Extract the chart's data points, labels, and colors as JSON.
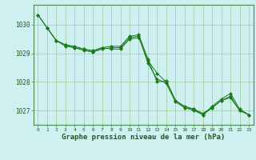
{
  "line1": {
    "x": [
      0,
      1,
      2,
      3,
      4,
      5,
      6,
      7,
      8,
      9,
      10,
      11,
      12,
      13,
      14,
      15,
      16,
      17,
      18,
      19,
      20,
      21,
      22,
      23
    ],
    "y": [
      1030.35,
      1029.9,
      1029.45,
      1029.3,
      1029.25,
      1029.15,
      1029.1,
      1029.2,
      1029.15,
      1029.15,
      1029.5,
      1029.55,
      1028.75,
      1028.3,
      1028.0,
      1027.35,
      1027.15,
      1027.05,
      1026.9,
      1027.1,
      1027.35,
      1027.45,
      1027.0,
      1026.85
    ]
  },
  "line2": {
    "x": [
      0,
      1,
      2,
      3,
      4,
      5,
      6,
      7,
      8,
      9,
      10,
      11,
      12,
      13,
      14,
      15,
      16,
      17,
      18,
      19,
      20,
      21,
      22,
      23
    ],
    "y": [
      1030.35,
      1029.9,
      1029.45,
      1029.3,
      1029.2,
      1029.15,
      1029.05,
      1029.2,
      1029.25,
      1029.25,
      1029.6,
      1029.65,
      1028.8,
      1028.0,
      1028.05,
      1027.35,
      1027.1,
      1027.05,
      1026.85,
      1027.15,
      1027.4,
      1027.6,
      1027.05,
      1026.85
    ]
  },
  "line3": {
    "x": [
      1,
      2,
      3,
      4,
      5,
      6,
      7,
      8,
      9,
      10,
      11,
      12,
      13,
      14,
      15,
      16,
      17,
      18,
      19,
      20,
      21,
      22,
      23
    ],
    "y": [
      1029.9,
      1029.45,
      1029.25,
      1029.2,
      1029.1,
      1029.05,
      1029.15,
      1029.2,
      1029.2,
      1029.55,
      1029.6,
      1028.65,
      1028.1,
      1027.95,
      1027.3,
      1027.1,
      1027.0,
      1026.85,
      1027.1,
      1027.35,
      1027.5,
      1027.0,
      1026.85
    ]
  },
  "color": "#1a7a1a",
  "marker": "D",
  "marker_size": 2,
  "background_color": "#cff0f0",
  "grid_color": "#a0c8a0",
  "xlabel": "Graphe pression niveau de la mer (hPa)",
  "xlabel_color": "#1a5c1a",
  "tick_color": "#1a5c1a",
  "axis_color": "#4a8a4a",
  "ylim": [
    1026.5,
    1030.7
  ],
  "yticks": [
    1027,
    1028,
    1029,
    1030
  ],
  "xticks": [
    0,
    1,
    2,
    3,
    4,
    5,
    6,
    7,
    8,
    9,
    10,
    11,
    12,
    13,
    14,
    15,
    16,
    17,
    18,
    19,
    20,
    21,
    22,
    23
  ]
}
